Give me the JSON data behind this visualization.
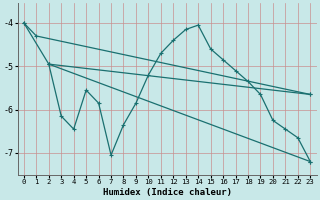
{
  "xlabel": "Humidex (Indice chaleur)",
  "background_color": "#c8e8e8",
  "line_color": "#1a7070",
  "xlim": [
    -0.5,
    23.5
  ],
  "ylim": [
    -7.5,
    -3.55
  ],
  "yticks": [
    -7,
    -6,
    -5,
    -4
  ],
  "xticks": [
    0,
    1,
    2,
    3,
    4,
    5,
    6,
    7,
    8,
    9,
    10,
    11,
    12,
    13,
    14,
    15,
    16,
    17,
    18,
    19,
    20,
    21,
    22,
    23
  ],
  "series": [
    {
      "x": [
        0,
        1,
        23
      ],
      "y": [
        -4.0,
        -4.3,
        -5.65
      ]
    },
    {
      "x": [
        2,
        23
      ],
      "y": [
        -4.95,
        -5.65
      ]
    },
    {
      "x": [
        2,
        23
      ],
      "y": [
        -4.95,
        -7.2
      ]
    },
    {
      "x": [
        0,
        2,
        3,
        4,
        5,
        6,
        7,
        8,
        9,
        10,
        11,
        12,
        13,
        14,
        15,
        16,
        17,
        18,
        19,
        20,
        21,
        22,
        23
      ],
      "y": [
        -4.0,
        -4.95,
        -6.15,
        -6.45,
        -5.55,
        -5.85,
        -7.05,
        -6.35,
        -5.85,
        -5.2,
        -4.7,
        -4.4,
        -4.15,
        -4.05,
        -4.6,
        -4.85,
        -5.1,
        -5.35,
        -5.65,
        -6.25,
        -6.45,
        -6.65,
        -7.2
      ]
    }
  ]
}
